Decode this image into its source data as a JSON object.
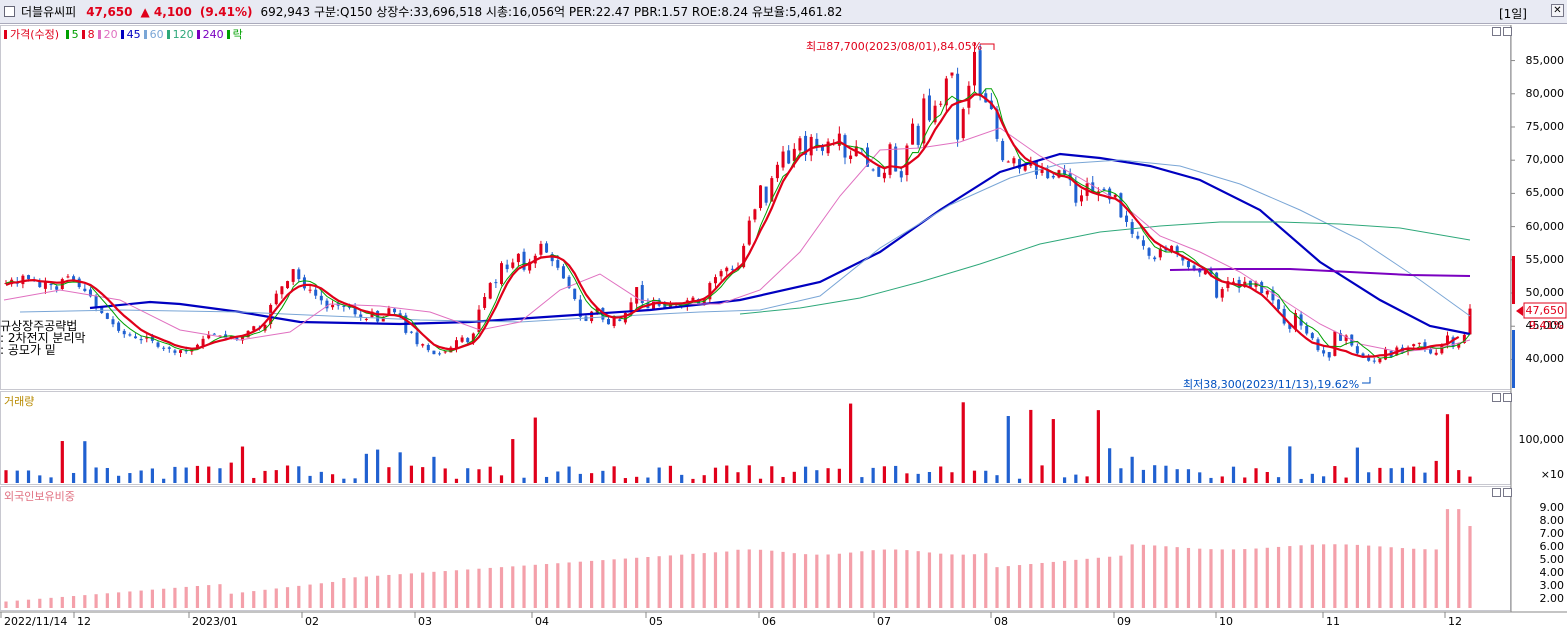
{
  "titlebar": {
    "name": "더블유씨피",
    "price": "47,650",
    "change": "▲ 4,100",
    "change_pct": "(9.41%)",
    "info": "692,943  구분:Q150 상장수:33,696,518 시총:16,056억 PER:22.47 PBR:1.57 ROE:8.24 유보율:5,461.82",
    "period": "[1일]",
    "close_button": "✕",
    "close_icon": "close-icon"
  },
  "legend": {
    "price_label": "가격(수정)",
    "ma": [
      "5",
      "8",
      "20",
      "45",
      "60",
      "120",
      "240",
      "락"
    ],
    "ma_colors": [
      "#00a000",
      "#e0001a",
      "#e070c0",
      "#0000c0",
      "#7aa6d6",
      "#2ea87a",
      "#7a00c0",
      "#00a000"
    ]
  },
  "price_panel": {
    "ymin": 36000,
    "ymax": 89000,
    "yticks": [
      "85,000",
      "80,000",
      "75,000",
      "70,000",
      "65,000",
      "60,000",
      "55,000",
      "50,000",
      "45,000",
      "40,000"
    ],
    "current_price": "47,650",
    "current_pct": "9.41%",
    "high_label": "최고87,700(2023/08/01),84.05%",
    "low_label": "최저38,300(2023/11/13),19.62%",
    "notes": [
      "규상장주공략법",
      ": 2차전지 분리막",
      ": 공모가 밑"
    ]
  },
  "volume_panel": {
    "label": "거래량",
    "yticks": [
      "100,000"
    ],
    "unit": "×10"
  },
  "foreign_panel": {
    "label": "외국인보유비중",
    "yticks": [
      "9.00",
      "8.00",
      "7.00",
      "6.00",
      "5.00",
      "4.00",
      "3.00",
      "2.00"
    ]
  },
  "x_axis": {
    "labels": [
      "2022/11/14",
      "12",
      "2023/01",
      "02",
      "03",
      "04",
      "05",
      "06",
      "07",
      "08",
      "09",
      "10",
      "11",
      "12"
    ]
  },
  "chart_data": {
    "type": "candlestick",
    "start_date": "2022/11/14",
    "closes": [
      51500,
      52000,
      51400,
      52600,
      52100,
      51800,
      50900,
      51600,
      51200,
      50500,
      52100,
      52500,
      52000,
      50900,
      50300,
      49500,
      47800,
      47000,
      46100,
      45300,
      44300,
      43800,
      43600,
      43200,
      42900,
      43300,
      42800,
      41900,
      41700,
      41600,
      41000,
      41400,
      41200,
      41600,
      42200,
      43100,
      43700,
      43800,
      43600,
      43200,
      43500,
      43000,
      43500,
      44300,
      45000,
      44600,
      45200,
      48200,
      49900,
      51000,
      51800,
      53600,
      52100,
      50700,
      50500,
      49600,
      48900,
      47700,
      48200,
      48100,
      47900,
      47800,
      46800,
      46300,
      46100,
      47200,
      45700,
      46300,
      47700,
      47100,
      46400,
      44000,
      44100,
      42300,
      42300,
      41400,
      40800,
      40900,
      41200,
      41800,
      42900,
      43300,
      42600,
      43900,
      47500,
      49400,
      51500,
      51500,
      54500,
      53600,
      54600,
      55900,
      53500,
      54700,
      55600,
      57400,
      56100,
      54800,
      53800,
      52200,
      50800,
      49100,
      46400,
      45800,
      47200,
      47700,
      46000,
      45300,
      46300,
      45800,
      47000,
      48600,
      50900,
      48500,
      47700,
      48900,
      48100,
      47800,
      48300,
      48500,
      48000,
      48900,
      49300,
      48400,
      49100,
      51500,
      52400,
      53300,
      53800,
      53600,
      53900,
      57100,
      60900,
      62600,
      66200,
      63600,
      67300,
      69300,
      71300,
      69500,
      71700,
      73300,
      70800,
      73500,
      72000,
      71400,
      72800,
      72600,
      74000,
      70400,
      70700,
      72100,
      71600,
      69000,
      68600,
      67500,
      68100,
      72400,
      68300,
      67400,
      72200,
      75500,
      72300,
      79300,
      76000,
      78200,
      78500,
      82300,
      83200,
      73100,
      77700,
      81200,
      86300,
      79900,
      78700,
      77700,
      73200,
      70000,
      69800,
      70300,
      68700,
      69500,
      69900,
      67800,
      68600,
      67300,
      67400,
      68500,
      67800,
      67000,
      63600,
      64700,
      66500,
      65100,
      65300,
      65500,
      64100,
      64800,
      61400,
      60700,
      58900,
      58200,
      57100,
      55600,
      55100,
      56700,
      56400,
      57100,
      55900,
      54900,
      53900,
      53400,
      53100,
      53400,
      52800,
      49300,
      50600,
      51800,
      51700,
      50800,
      51700,
      50900,
      51600,
      50000,
      50300,
      48900,
      47600,
      45400,
      44600,
      47000,
      45100,
      43900,
      43200,
      41400,
      40900,
      40300,
      44200,
      42800,
      43600,
      42100,
      40900,
      40400,
      39800,
      39700,
      40100,
      41500,
      40400,
      41800,
      41000,
      41800,
      42300,
      42500,
      41700,
      40900,
      41000,
      42300,
      43600,
      41900,
      42400,
      43700,
      47650
    ],
    "ma": {
      "8": [
        51200,
        51560,
        51620,
        51780,
        51900,
        51940,
        51780,
        51720,
        51640,
        51560,
        51580,
        51840,
        51920,
        51740,
        51540,
        51200,
        50620,
        49920,
        49120,
        48240,
        47360,
        46560,
        45860,
        45140,
        44460,
        43980,
        43580,
        43240,
        42880,
        42560,
        42160,
        41920,
        41740,
        41620,
        41680,
        41940,
        42260,
        42580,
        42800,
        42980,
        43260,
        43420,
        43560,
        43820,
        44200,
        44680,
        45540,
        46540,
        47640,
        48700,
        49720,
        50460,
        50960,
        51200,
        51240,
        51040,
        50680,
        50060,
        49420,
        48860,
        48500,
        48180,
        47880,
        47460,
        47220,
        47000,
        46800,
        46780,
        46700,
        46660,
        46500,
        45960,
        45320,
        44560,
        43760,
        42980,
        42240,
        41860,
        41640,
        41500,
        41620,
        41920,
        42200,
        42540,
        43400,
        44740,
        46300,
        47900,
        49700,
        51420,
        52740,
        53640,
        54080,
        54420,
        54940,
        55340,
        55440,
        55520,
        55380,
        54960,
        54140,
        52940,
        51300,
        49780,
        48660,
        47760,
        47000,
        46520,
        46280,
        46340,
        46540,
        46880,
        47420,
        47920,
        48140,
        48420,
        48520,
        48480,
        48400,
        48420,
        48440,
        48580,
        48740,
        48860,
        49140,
        49720,
        50620,
        51580,
        52460,
        53160,
        53740,
        54540,
        55980,
        57640,
        59420,
        61000,
        62800,
        64860,
        66800,
        68160,
        69420,
        70620,
        71200,
        71800,
        72000,
        72140,
        72300,
        72480,
        72780,
        72300,
        71760,
        71340,
        70940,
        70260,
        69680,
        69160,
        68780,
        69100,
        69000,
        68880,
        69280,
        69940,
        70580,
        71680,
        73000,
        74600,
        75820,
        77160,
        78260,
        78660,
        78920,
        79140,
        79900,
        79860,
        79240,
        78540,
        77400,
        75460,
        73740,
        72260,
        71200,
        70300,
        69760,
        69260,
        68900,
        68520,
        68080,
        67700,
        67580,
        67300,
        66520,
        65900,
        65500,
        65120,
        64840,
        64640,
        64360,
        64200,
        63640,
        62740,
        61780,
        60760,
        59760,
        58640,
        57740,
        57220,
        56720,
        56320,
        55960,
        55500,
        55040,
        54580,
        54100,
        53600,
        52640,
        52120,
        51740,
        51520,
        51360,
        51240,
        51140,
        50800,
        50260,
        49740,
        48960,
        48080,
        47160,
        46300,
        45380,
        44580,
        43800,
        43120,
        42540,
        42320,
        42060,
        41920,
        41700,
        41440,
        41240,
        40840,
        40600,
        40380,
        40440,
        40440,
        40620,
        40660,
        40840,
        41140,
        41480,
        41640,
        41620,
        41580,
        41740,
        41980,
        42100,
        42160,
        42320,
        42900,
        43400
      ]
    },
    "high": {
      "value": 87700,
      "date": "2023/08/01"
    },
    "low": {
      "value": 38300,
      "date": "2023/11/13"
    }
  }
}
